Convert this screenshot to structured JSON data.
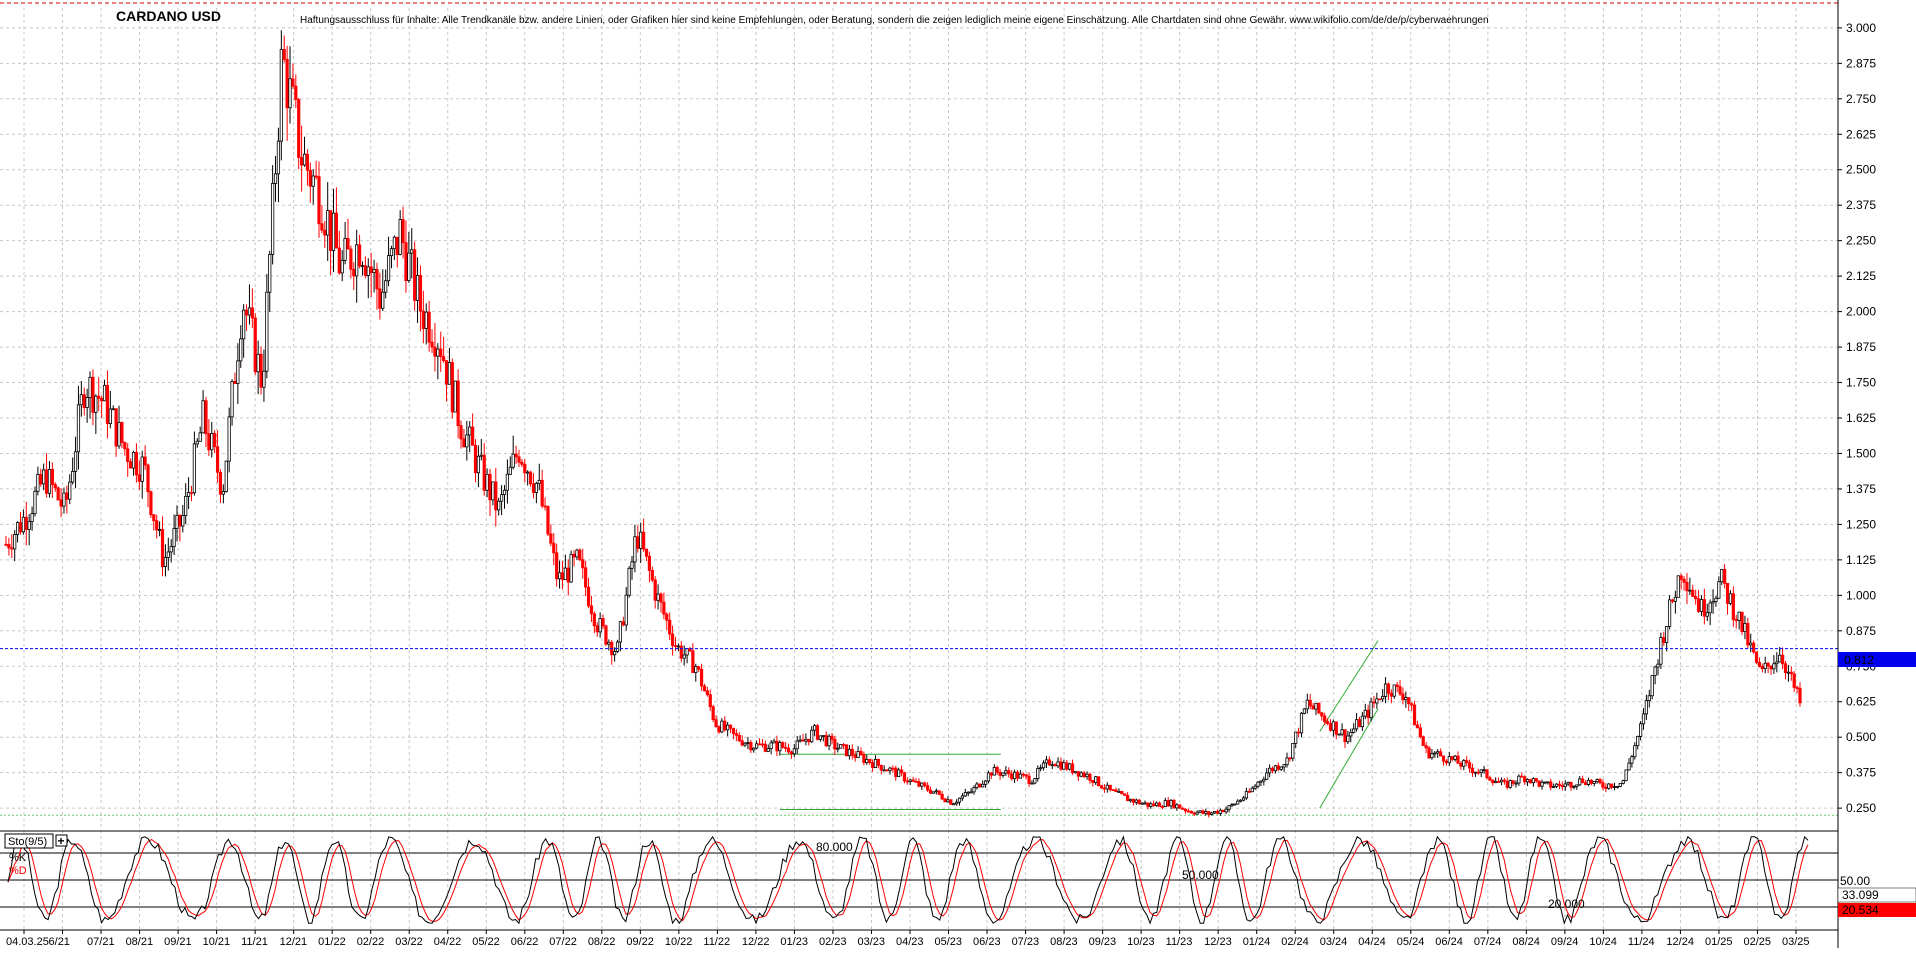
{
  "chart_data": {
    "type": "candlestick",
    "title": "CARDANO USD",
    "disclaimer": "Haftungsausschluss für Inhalte: Alle Trendkanäle bzw. andere Linien, oder Grafiken hier sind keine Empfehlungen, oder Beratung, sondern die zeigen lediglich meine eigene Einschätzung. Alle Chartdaten sind ohne Gewähr.  www.wikifolio.com/de/de/p/cyberwaehrungen",
    "price_axis": {
      "ylim": [
        0.18,
        3.07
      ],
      "ticks": [
        3.0,
        2.875,
        2.75,
        2.625,
        2.5,
        2.375,
        2.25,
        2.125,
        2.0,
        1.875,
        1.75,
        1.625,
        1.5,
        1.375,
        1.25,
        1.125,
        1.0,
        0.875,
        0.75,
        0.625,
        0.5,
        0.375,
        0.25
      ],
      "tick_labels": [
        "3.000",
        "2.875",
        "2.750",
        "2.625",
        "2.500",
        "2.375",
        "2.250",
        "2.125",
        "2.000",
        "1.875",
        "1.750",
        "1.625",
        "1.500",
        "1.375",
        "1.250",
        "1.125",
        "1.000",
        "0.875",
        "0.750",
        "0.625",
        "0.500",
        "0.375",
        "0.250"
      ]
    },
    "current_price": {
      "value": 0.812,
      "label": "0.812",
      "color": "#0000ff"
    },
    "x_axis_labels": [
      "04.03.25",
      "6/21",
      "07/21",
      "08/21",
      "09/21",
      "10/21",
      "11/21",
      "12/21",
      "01/22",
      "02/22",
      "03/22",
      "04/22",
      "05/22",
      "06/22",
      "07/22",
      "08/22",
      "09/22",
      "10/22",
      "11/22",
      "12/22",
      "01/23",
      "02/23",
      "03/23",
      "04/23",
      "05/23",
      "06/23",
      "07/23",
      "08/23",
      "09/23",
      "10/23",
      "11/23",
      "12/23",
      "01/24",
      "02/24",
      "03/24",
      "04/24",
      "05/24",
      "06/24",
      "07/24",
      "08/24",
      "09/24",
      "10/24",
      "11/24",
      "12/24",
      "01/25",
      "02/25",
      "03/25"
    ],
    "closes": [
      1.18,
      1.28,
      1.42,
      1.3,
      1.75,
      1.68,
      1.52,
      1.45,
      1.12,
      1.28,
      1.62,
      1.38,
      2.05,
      1.75,
      2.9,
      2.55,
      2.4,
      2.15,
      2.25,
      2.05,
      2.28,
      2.02,
      1.9,
      1.62,
      1.45,
      1.3,
      1.52,
      1.38,
      1.05,
      1.12,
      0.9,
      0.8,
      1.22,
      1.0,
      0.82,
      0.75,
      0.55,
      0.5,
      0.47,
      0.47,
      0.46,
      0.52,
      0.47,
      0.44,
      0.41,
      0.38,
      0.34,
      0.31,
      0.27,
      0.31,
      0.38,
      0.37,
      0.35,
      0.42,
      0.39,
      0.36,
      0.31,
      0.28,
      0.26,
      0.27,
      0.24,
      0.23,
      0.25,
      0.3,
      0.38,
      0.42,
      0.62,
      0.56,
      0.5,
      0.58,
      0.68,
      0.65,
      0.45,
      0.43,
      0.4,
      0.37,
      0.33,
      0.36,
      0.33,
      0.33,
      0.35,
      0.33,
      0.34,
      0.55,
      0.85,
      1.1,
      0.95,
      1.05,
      0.9,
      0.72,
      0.8,
      0.62
    ],
    "channels": [
      {
        "name": "sideways",
        "color": "#33aa33",
        "lines": [
          [
            [
              0,
              0.44
            ],
            [
              0.48,
              0.44
            ]
          ],
          [
            [
              0,
              0.245
            ],
            [
              0.48,
              0.245
            ]
          ]
        ]
      },
      {
        "name": "uptrend",
        "color": "#33aa33",
        "lines": [
          [
            [
              0.72,
              0.52
            ],
            [
              1.0,
              0.84
            ]
          ],
          [
            [
              0.72,
              0.25
            ],
            [
              1.0,
              0.6
            ]
          ]
        ]
      }
    ],
    "stochastic": {
      "label": "Sto(9/5)",
      "k_label": "%K",
      "d_label": "%D",
      "k_color": "#000000",
      "d_color": "#ff0000",
      "levels": [
        80,
        50,
        20
      ],
      "level_labels": [
        "80.000",
        "50.000",
        "20.000"
      ],
      "axis_label_50": "50.00",
      "k_value": 33.099,
      "d_value": 20.534,
      "k_value_label": "33.099",
      "d_value_label": "20.534"
    }
  }
}
